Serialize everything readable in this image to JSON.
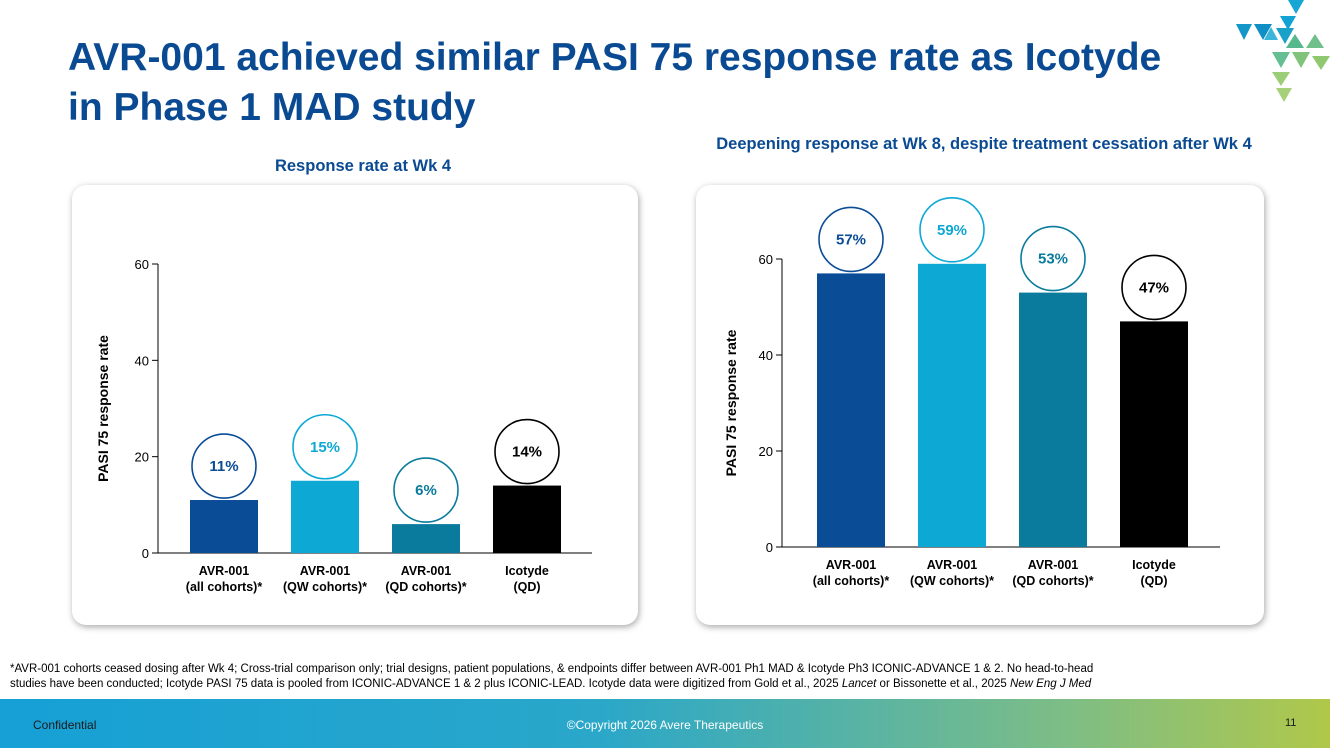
{
  "title": "AVR-001 achieved similar PASI 75 response rate as Icotyde in Phase 1 MAD study",
  "colors": {
    "dark_blue": "#0b4c96",
    "light_blue": "#0ea8d4",
    "teal": "#0a7b9c",
    "black": "#000000",
    "title_blue": "#0a4a92"
  },
  "chart_data": [
    {
      "type": "bar",
      "title": "Response rate at Wk 4",
      "ylabel": "PASI 75 response rate",
      "ylim": [
        0,
        60
      ],
      "yticks": [
        0,
        20,
        40,
        60
      ],
      "categories": [
        [
          "AVR-001",
          "(all cohorts)*"
        ],
        [
          "AVR-001",
          "(QW cohorts)*"
        ],
        [
          "AVR-001",
          "(QD cohorts)*"
        ],
        [
          "Icotyde",
          "(QD)"
        ]
      ],
      "values": [
        11,
        15,
        6,
        14
      ],
      "data_labels": [
        "11%",
        "15%",
        "6%",
        "14%"
      ],
      "bar_colors": [
        "#0b4c96",
        "#0ea8d4",
        "#0a7b9c",
        "#000000"
      ],
      "grid": false
    },
    {
      "type": "bar",
      "title": "Deepening response at Wk 8, despite treatment cessation after Wk 4",
      "ylabel": "PASI 75 response rate",
      "ylim": [
        0,
        60
      ],
      "yticks": [
        0,
        20,
        40,
        60
      ],
      "categories": [
        [
          "AVR-001",
          "(all cohorts)*"
        ],
        [
          "AVR-001",
          "(QW cohorts)*"
        ],
        [
          "AVR-001",
          "(QD cohorts)*"
        ],
        [
          "Icotyde",
          "(QD)"
        ]
      ],
      "values": [
        57,
        59,
        53,
        47
      ],
      "data_labels": [
        "57%",
        "59%",
        "53%",
        "47%"
      ],
      "bar_colors": [
        "#0b4c96",
        "#0ea8d4",
        "#0a7b9c",
        "#000000"
      ],
      "grid": false
    }
  ],
  "footnote": {
    "line1": "*AVR-001 cohorts ceased dosing after Wk 4; Cross-trial comparison only; trial designs, patient populations, & endpoints differ between AVR-001 Ph1 MAD & Icotyde Ph3 ICONIC-ADVANCE 1 & 2. No head-to-head",
    "line2_a": "studies have been conducted; Icotyde PASI 75 data is pooled from ICONIC-ADVANCE 1 & 2 plus ICONIC-LEAD. Icotyde data were digitized from Gold et al., 2025 ",
    "line2_b": "Lancet",
    "line2_c": " or Bissonette et al., 2025 ",
    "line2_d": "New Eng J Med"
  },
  "footer": {
    "left": "Confidential",
    "center": "©Copyright 2026 Avere Therapeutics",
    "page": "11"
  }
}
